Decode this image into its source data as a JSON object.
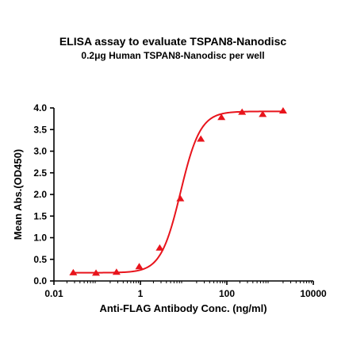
{
  "chart_data": {
    "type": "scatter",
    "title": "ELISA assay to evaluate TSPAN8-Nanodisc",
    "subtitle": "0.2μg Human TSPAN8-Nanodisc per well",
    "xlabel": "Anti-FLAG Antibody Conc. (ng/ml)",
    "ylabel": "Mean Abs.(OD450)",
    "x_scale": "log",
    "xlim": [
      0.01,
      10000
    ],
    "ylim": [
      0.0,
      4.0
    ],
    "x_ticks": [
      0.01,
      1,
      100,
      10000
    ],
    "x_tick_labels": [
      "0.01",
      "1",
      "100",
      "10000"
    ],
    "y_ticks": [
      0.0,
      0.5,
      1.0,
      1.5,
      2.0,
      2.5,
      3.0,
      3.5,
      4.0
    ],
    "y_tick_labels": [
      "0.0",
      "0.5",
      "1.0",
      "1.5",
      "2.0",
      "2.5",
      "3.0",
      "3.5",
      "4.0"
    ],
    "grid": false,
    "color": "#e8141c",
    "marker": "triangle",
    "series": [
      {
        "x": [
          0.028,
          0.094,
          0.28,
          0.94,
          2.8,
          8.4,
          25,
          75,
          225,
          675,
          2000
        ],
        "y": [
          0.19,
          0.18,
          0.2,
          0.33,
          0.76,
          1.9,
          3.28,
          3.78,
          3.9,
          3.85,
          3.93
        ]
      }
    ],
    "fit": {
      "model": "4PL",
      "bottom": 0.19,
      "top": 3.92,
      "ec50": 8.5,
      "hill": 1.9
    }
  }
}
